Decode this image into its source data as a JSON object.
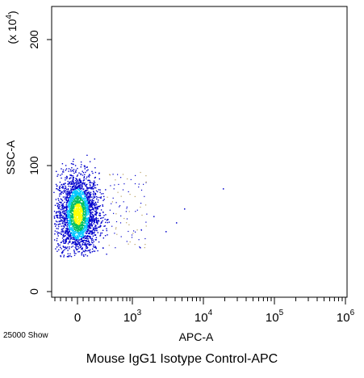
{
  "chart_data": {
    "type": "scatter",
    "title": "Mouse IgG1 Isotype Control-APC",
    "xlabel": "APC-A",
    "ylabel": "SSC-A",
    "y_multiplier": "(x 10",
    "y_multiplier_exp": "4",
    "y_multiplier_close": ")",
    "x_scale": "biexponential (log)",
    "y_scale": "linear",
    "x_ticks": [
      {
        "label": "0",
        "exp": ""
      },
      {
        "label": "10",
        "exp": "3"
      },
      {
        "label": "10",
        "exp": "4"
      },
      {
        "label": "10",
        "exp": "5"
      },
      {
        "label": "10",
        "exp": "6"
      }
    ],
    "y_ticks": [
      "0",
      "100",
      "200"
    ],
    "ylim": [
      0,
      230
    ],
    "event_count_label": "25000 Show",
    "plot_style": "density pseudocolor",
    "population": {
      "x_center": 0,
      "y_center": 62,
      "y_range": [
        28,
        110
      ],
      "events": 25000
    },
    "colors": {
      "low": "#0000cc",
      "mid_low": "#00c8ff",
      "mid": "#00c060",
      "high": "#ffff00",
      "axis": "#000000"
    }
  }
}
